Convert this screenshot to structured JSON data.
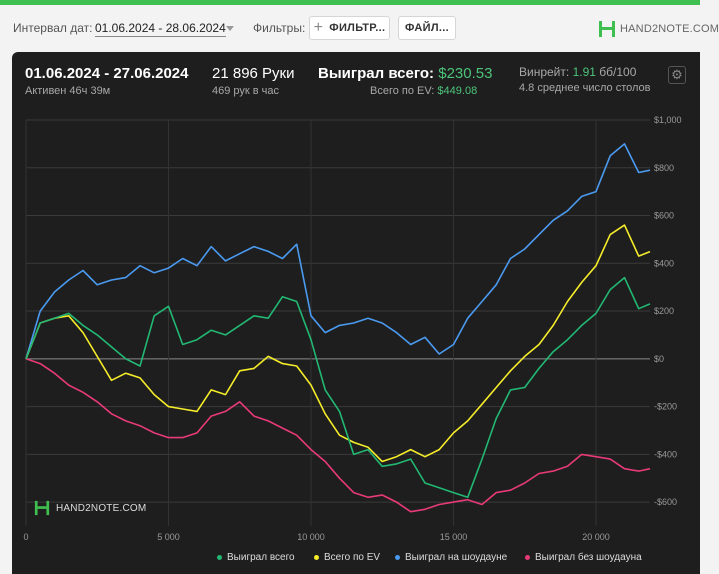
{
  "toolbar": {
    "interval_label": "Интервал дат:",
    "date_range": "01.06.2024 - 28.06.2024",
    "filters_label": "Фильтры:",
    "filter_button": "ФИЛЬТР...",
    "file_button": "ФАЙЛ...",
    "brand_text": "HAND2NOTE.COM"
  },
  "colors": {
    "accent": "#3fbf4f",
    "panel_bg": "#1e1e1e",
    "won_total": "#22b873",
    "ev": "#f5ec2a",
    "showdown": "#4a9af0",
    "non_showdown": "#e83a78"
  },
  "stats": {
    "period": "01.06.2024 - 27.06.2024",
    "active": "Активен 46ч 39м",
    "hands": "21 896 Руки",
    "hands_per_hour": "469 рук в час",
    "won_label": "Выиграл всего:",
    "won_value": "$230.53",
    "ev_label": "Всего по EV:",
    "ev_value": "$449.08",
    "winrate_label": "Винрейт:",
    "winrate_value": "1.91",
    "winrate_unit": "бб/100",
    "tables": "4.8 среднее число столов"
  },
  "watermark_text": "HAND2NOTE.COM",
  "chart_data": {
    "type": "line",
    "xlim": [
      0,
      21896
    ],
    "ylim": [
      -700,
      1000
    ],
    "x_ticks": [
      0,
      5000,
      10000,
      15000,
      20000
    ],
    "x_tick_labels": [
      "0",
      "5 000",
      "10 000",
      "15 000",
      "20 000"
    ],
    "y_ticks": [
      1000,
      800,
      600,
      400,
      200,
      0,
      -200,
      -400,
      -600
    ],
    "y_tick_labels": [
      "$1,000",
      "$800",
      "$600",
      "$400",
      "$200",
      "$0",
      "-$200",
      "-$400",
      "-$600"
    ],
    "grid": true,
    "legend_position": "bottom",
    "x": [
      0,
      500,
      1000,
      1500,
      2000,
      2500,
      3000,
      3500,
      4000,
      4500,
      5000,
      5500,
      6000,
      6500,
      7000,
      7500,
      8000,
      8500,
      9000,
      9500,
      10000,
      10500,
      11000,
      11500,
      12000,
      12500,
      13000,
      13500,
      14000,
      14500,
      15000,
      15500,
      16000,
      16500,
      17000,
      17500,
      18000,
      18500,
      19000,
      19500,
      20000,
      20500,
      21000,
      21500,
      21896
    ],
    "series": [
      {
        "name": "Выиграл всего",
        "color": "#22b873",
        "values": [
          0,
          150,
          170,
          190,
          140,
          100,
          50,
          0,
          -30,
          180,
          220,
          60,
          80,
          120,
          100,
          140,
          180,
          170,
          260,
          240,
          80,
          -130,
          -220,
          -400,
          -380,
          -450,
          -440,
          -420,
          -520,
          -540,
          -560,
          -580,
          -420,
          -250,
          -130,
          -120,
          -40,
          30,
          80,
          140,
          190,
          290,
          340,
          210,
          230
        ]
      },
      {
        "name": "Всего по EV",
        "color": "#f5ec2a",
        "values": [
          0,
          150,
          170,
          180,
          110,
          10,
          -90,
          -60,
          -80,
          -150,
          -200,
          -210,
          -220,
          -130,
          -150,
          -50,
          -40,
          10,
          -20,
          -30,
          -110,
          -230,
          -320,
          -350,
          -370,
          -430,
          -410,
          -380,
          -410,
          -380,
          -310,
          -260,
          -190,
          -120,
          -50,
          10,
          60,
          140,
          240,
          320,
          390,
          520,
          560,
          430,
          449
        ]
      },
      {
        "name": "Выиграл на шоудауне",
        "color": "#4a9af0",
        "values": [
          0,
          200,
          280,
          330,
          370,
          310,
          330,
          340,
          390,
          360,
          380,
          420,
          390,
          470,
          410,
          440,
          470,
          450,
          420,
          480,
          180,
          110,
          140,
          150,
          170,
          150,
          110,
          60,
          90,
          20,
          60,
          170,
          240,
          310,
          420,
          460,
          520,
          580,
          620,
          680,
          700,
          850,
          900,
          780,
          790
        ]
      },
      {
        "name": "Выиграл без шоудауна",
        "color": "#e83a78",
        "values": [
          0,
          -20,
          -60,
          -110,
          -140,
          -180,
          -230,
          -260,
          -280,
          -310,
          -330,
          -330,
          -310,
          -240,
          -220,
          -180,
          -240,
          -260,
          -290,
          -320,
          -380,
          -430,
          -500,
          -560,
          -580,
          -570,
          -600,
          -640,
          -630,
          -610,
          -600,
          -590,
          -610,
          -560,
          -550,
          -520,
          -480,
          -470,
          -450,
          -400,
          -410,
          -420,
          -460,
          -470,
          -460
        ]
      }
    ]
  }
}
